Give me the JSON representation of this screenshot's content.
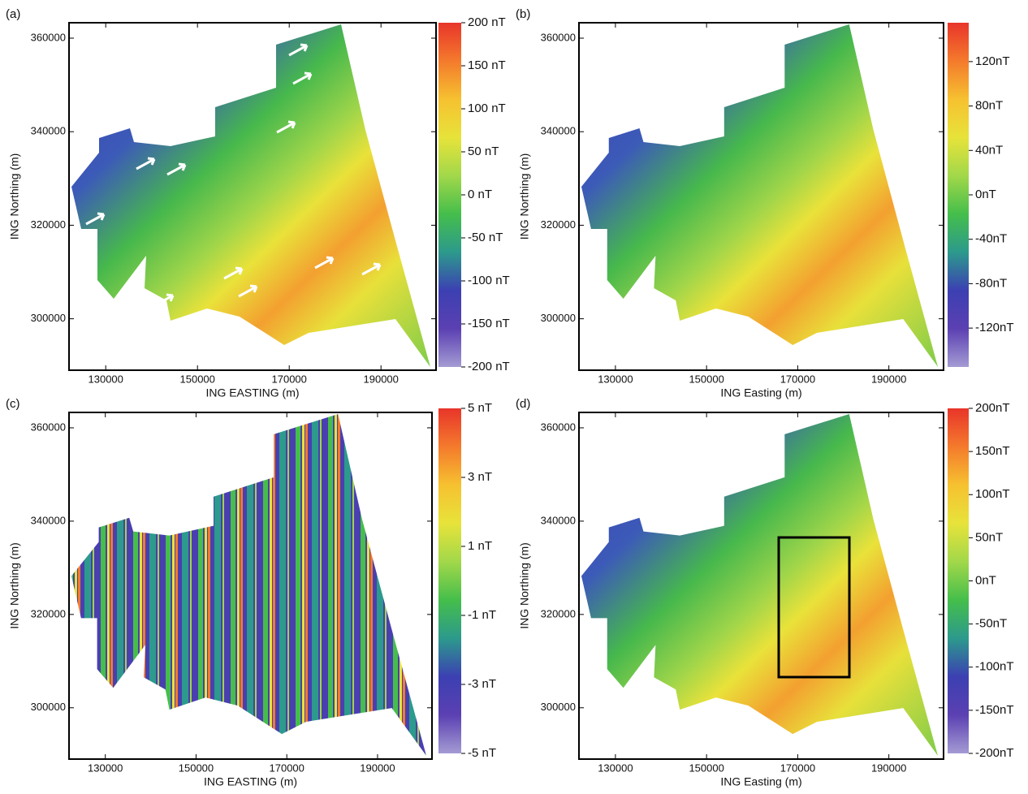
{
  "chart_data": [
    {
      "type": "map",
      "panel_label": "(a)",
      "xlabel": "ING EASTING (m)",
      "ylabel": "ING Northing (m)",
      "xlim": [
        122000,
        202000
      ],
      "xticks": [
        130000,
        150000,
        170000,
        190000
      ],
      "ylim": [
        289000,
        363300
      ],
      "yticks": [
        300000,
        320000,
        340000,
        360000
      ],
      "colorbar": {
        "lim": [
          -200,
          200
        ],
        "ticks": [
          {
            "value": 200,
            "label": "200 nT"
          },
          {
            "value": 150,
            "label": "150 nT"
          },
          {
            "value": 100,
            "label": "100 nT"
          },
          {
            "value": 50,
            "label": "50 nT"
          },
          {
            "value": 0,
            "label": "0 nT"
          },
          {
            "value": -50,
            "label": "-50 nT"
          },
          {
            "value": -100,
            "label": "-100 nT"
          },
          {
            "value": -150,
            "label": "-150 nT"
          },
          {
            "value": -200,
            "label": "-200 nT"
          }
        ]
      },
      "colormap": [
        "#e8352a",
        "#f47a2c",
        "#f6c130",
        "#e7e33a",
        "#a2d84a",
        "#45be4b",
        "#2c9a8c",
        "#3c40b2",
        "#5b40b2",
        "#a49bd3"
      ]
    },
    {
      "type": "map",
      "panel_label": "(b)",
      "xlabel": "ING Easting (m)",
      "ylabel": "ING Northing (m)",
      "xlim": [
        122000,
        202000
      ],
      "xticks": [
        130000,
        150000,
        170000,
        190000
      ],
      "ylim": [
        289000,
        363300
      ],
      "yticks": [
        300000,
        320000,
        340000,
        360000
      ],
      "colorbar": {
        "lim": [
          -155,
          155
        ],
        "ticks": [
          {
            "value": 120,
            "label": "120nT"
          },
          {
            "value": 80,
            "label": "80nT"
          },
          {
            "value": 40,
            "label": "40nT"
          },
          {
            "value": 0,
            "label": "0nT"
          },
          {
            "value": -40,
            "label": "-40nT"
          },
          {
            "value": -80,
            "label": "-80nT"
          },
          {
            "value": -120,
            "label": "-120nT"
          }
        ]
      },
      "colormap": [
        "#e8352a",
        "#f47a2c",
        "#f6c130",
        "#e7e33a",
        "#a2d84a",
        "#45be4b",
        "#2c9a8c",
        "#3c40b2",
        "#5b40b2",
        "#a49bd3"
      ]
    },
    {
      "type": "map",
      "panel_label": "(c)",
      "xlabel": "ING EASTING (m)",
      "ylabel": "ING Northing (m)",
      "xlim": [
        122000,
        202000
      ],
      "xticks": [
        130000,
        150000,
        170000,
        190000
      ],
      "ylim": [
        289000,
        363300
      ],
      "yticks": [
        300000,
        320000,
        340000,
        360000
      ],
      "colorbar": {
        "lim": [
          -5,
          5
        ],
        "ticks": [
          {
            "value": 5,
            "label": "5 nT"
          },
          {
            "value": 3,
            "label": "3 nT"
          },
          {
            "value": 1,
            "label": "1 nT"
          },
          {
            "value": -1,
            "label": "-1 nT"
          },
          {
            "value": -3,
            "label": "-3 nT"
          },
          {
            "value": -5,
            "label": "-5 nT"
          }
        ]
      },
      "colormap": [
        "#e8352a",
        "#f47a2c",
        "#f6c130",
        "#e7e33a",
        "#a2d84a",
        "#45be4b",
        "#2c9a8c",
        "#3c40b2",
        "#5b40b2",
        "#a49bd3"
      ]
    },
    {
      "type": "map",
      "panel_label": "(d)",
      "xlabel": "ING Easting (m)",
      "ylabel": "ING Northing (m)",
      "xlim": [
        122000,
        202000
      ],
      "xticks": [
        130000,
        150000,
        170000,
        190000
      ],
      "ylim": [
        289000,
        363300
      ],
      "yticks": [
        300000,
        320000,
        340000,
        360000
      ],
      "colorbar": {
        "lim": [
          -200,
          200
        ],
        "ticks": [
          {
            "value": 200,
            "label": "200nT"
          },
          {
            "value": 150,
            "label": "150nT"
          },
          {
            "value": 100,
            "label": "100nT"
          },
          {
            "value": 50,
            "label": "50nT"
          },
          {
            "value": 0,
            "label": "0nT"
          },
          {
            "value": -50,
            "label": "-50nT"
          },
          {
            "value": -100,
            "label": "-100nT"
          },
          {
            "value": -150,
            "label": "-150nT"
          },
          {
            "value": -200,
            "label": "-200nT"
          }
        ]
      },
      "colormap": [
        "#e8352a",
        "#f47a2c",
        "#f6c130",
        "#e7e33a",
        "#a2d84a",
        "#45be4b",
        "#2c9a8c",
        "#3c40b2",
        "#5b40b2",
        "#a49bd3"
      ]
    }
  ]
}
